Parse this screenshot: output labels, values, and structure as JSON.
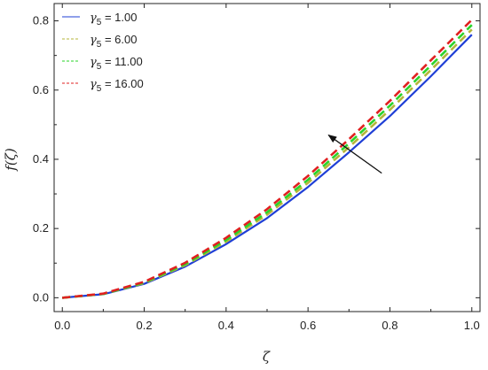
{
  "chart_data": {
    "type": "line",
    "title": "",
    "xlabel": "ζ",
    "ylabel": "f(ζ)",
    "xlim": [
      -0.02,
      1.02
    ],
    "ylim": [
      -0.04,
      0.85
    ],
    "x_ticks": [
      "0.0",
      "0.2",
      "0.4",
      "0.6",
      "0.8",
      "1.0"
    ],
    "y_ticks": [
      "0.0",
      "0.2",
      "0.4",
      "0.6",
      "0.8"
    ],
    "grid": false,
    "legend_position": "top-left",
    "legend_symbol": "γ",
    "legend_subscript": "5",
    "x": [
      0.0,
      0.1,
      0.2,
      0.3,
      0.4,
      0.5,
      0.6,
      0.7,
      0.8,
      0.9,
      1.0
    ],
    "series": [
      {
        "name": "= 1.00",
        "color": "#1f3fd6",
        "dash": "solid",
        "values": [
          0.0,
          0.01,
          0.04,
          0.09,
          0.155,
          0.23,
          0.32,
          0.42,
          0.525,
          0.64,
          0.76
        ]
      },
      {
        "name": "= 6.00",
        "color": "#b5b53a",
        "dash": "dash",
        "values": [
          0.0,
          0.011,
          0.042,
          0.094,
          0.162,
          0.24,
          0.332,
          0.435,
          0.543,
          0.658,
          0.775
        ]
      },
      {
        "name": "= 11.00",
        "color": "#2ad42a",
        "dash": "dash",
        "values": [
          0.0,
          0.011,
          0.044,
          0.097,
          0.167,
          0.247,
          0.341,
          0.446,
          0.555,
          0.671,
          0.788
        ]
      },
      {
        "name": "= 16.00",
        "color": "#e02020",
        "dash": "dash",
        "values": [
          0.0,
          0.012,
          0.046,
          0.101,
          0.173,
          0.256,
          0.352,
          0.458,
          0.569,
          0.686,
          0.803
        ]
      }
    ],
    "annotations": [
      {
        "type": "arrow",
        "from": [
          0.78,
          0.36
        ],
        "to": [
          0.65,
          0.47
        ]
      }
    ]
  }
}
